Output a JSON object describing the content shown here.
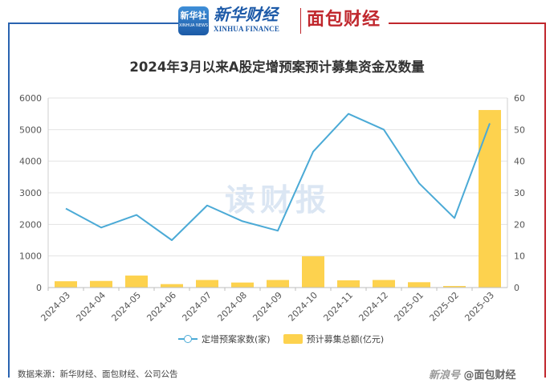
{
  "header": {
    "xinhua_logo_text": "新华社",
    "xinhua_logo_sub": "XINHUA NEWS",
    "xinhua_name_cn": "新华财经",
    "xinhua_name_en": "XINHUA FINANCE",
    "mianbao_name": "面包财经"
  },
  "colors": {
    "line": "#4baad6",
    "bar": "#fdd24e",
    "frame_blue": "#2a63b0",
    "frame_red": "#c0272d"
  },
  "chart_data": {
    "type": "bar",
    "title": "2024年3月以来A股定增预案预计募集资金及数量",
    "categories": [
      "2024-03",
      "2024-04",
      "2024-05",
      "2024-06",
      "2024-07",
      "2024-08",
      "2024-09",
      "2024-10",
      "2024-11",
      "2024-12",
      "2025-01",
      "2025-02",
      "2025-03"
    ],
    "left_axis": {
      "ylim": [
        0,
        6000
      ],
      "ticks": [
        "0",
        "1000",
        "2000",
        "3000",
        "4000",
        "5000",
        "6000"
      ]
    },
    "right_axis": {
      "ylim": [
        0,
        60
      ],
      "ticks": [
        "0",
        "10",
        "20",
        "30",
        "40",
        "50",
        "60"
      ]
    },
    "series": [
      {
        "name": "预计募集总额(亿元)",
        "type": "bar",
        "axis": "left",
        "values": [
          200,
          210,
          380,
          110,
          240,
          160,
          240,
          990,
          230,
          240,
          170,
          50,
          5620
        ]
      },
      {
        "name": "定增预案家数(家)",
        "type": "line",
        "axis": "right",
        "values": [
          25,
          19,
          23,
          15,
          26,
          21,
          18,
          43,
          55,
          50,
          33,
          22,
          52
        ]
      }
    ],
    "grid": true,
    "legend_position": "bottom"
  },
  "watermark": "读财报",
  "source": "数据来源：新华财经、面包财经、公司公告",
  "bottom_brand": {
    "prefix": "新浪号",
    "name": "@面包财经"
  }
}
